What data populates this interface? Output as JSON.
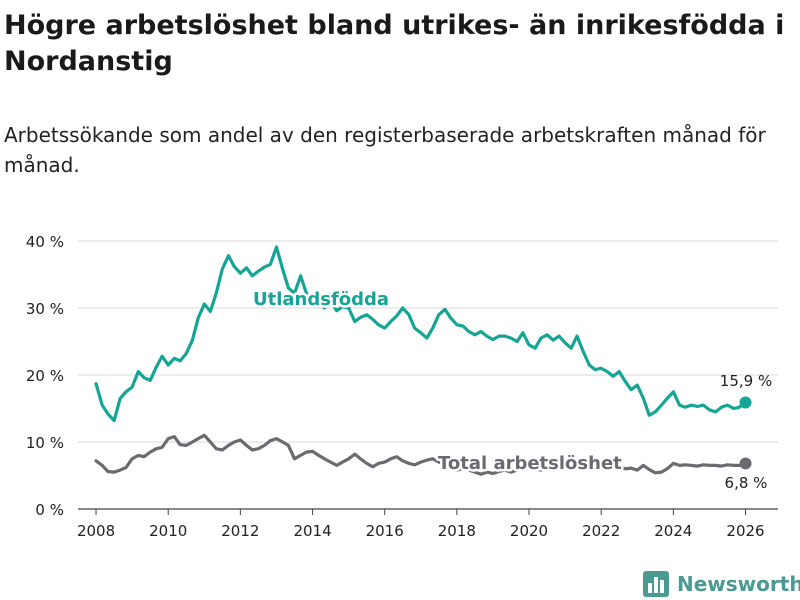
{
  "header": {
    "title": "Högre arbetslöshet bland utrikes- än inrikesfödda i Nordanstig",
    "subtitle": "Arbetssökande som andel av den registerbaserade arbetskraften månad för månad."
  },
  "brand": {
    "name": "Newsworthy"
  },
  "colors": {
    "utlandsfodda": "#14a597",
    "total": "#6b6a70",
    "grid": "#d9d9d9",
    "text": "#222222"
  },
  "chart_data": {
    "type": "line",
    "title": "Högre arbetslöshet bland utrikes- än inrikesfödda i Nordanstig",
    "subtitle": "Arbetssökande som andel av den registerbaserade arbetskraften månad för månad.",
    "xlabel": "",
    "ylabel": "",
    "xlim": [
      2007.5,
      2026.9
    ],
    "ylim": [
      0,
      40
    ],
    "y_ticks": [
      0,
      10,
      20,
      30,
      40
    ],
    "y_tick_labels": [
      "0 %",
      "10 %",
      "20 %",
      "30 %",
      "40 %"
    ],
    "x_ticks": [
      2008,
      2010,
      2012,
      2014,
      2016,
      2018,
      2020,
      2022,
      2024,
      2026
    ],
    "x_tick_labels": [
      "2008",
      "2010",
      "2012",
      "2014",
      "2016",
      "2018",
      "2020",
      "2022",
      "2024",
      "2026"
    ],
    "grid": true,
    "series": [
      {
        "name": "Utlandsfödda",
        "color": "#14a597",
        "end_label": "15,9 %",
        "x": [
          2008.0,
          2008.17,
          2008.33,
          2008.5,
          2008.67,
          2008.83,
          2009.0,
          2009.17,
          2009.33,
          2009.5,
          2009.67,
          2009.83,
          2010.0,
          2010.17,
          2010.33,
          2010.5,
          2010.67,
          2010.83,
          2011.0,
          2011.17,
          2011.33,
          2011.5,
          2011.67,
          2011.83,
          2012.0,
          2012.17,
          2012.33,
          2012.5,
          2012.67,
          2012.83,
          2013.0,
          2013.17,
          2013.33,
          2013.5,
          2013.67,
          2013.83,
          2014.0,
          2014.17,
          2014.33,
          2014.5,
          2014.67,
          2014.83,
          2015.0,
          2015.17,
          2015.33,
          2015.5,
          2015.67,
          2015.83,
          2016.0,
          2016.17,
          2016.33,
          2016.5,
          2016.67,
          2016.83,
          2017.0,
          2017.17,
          2017.33,
          2017.5,
          2017.67,
          2017.83,
          2018.0,
          2018.17,
          2018.33,
          2018.5,
          2018.67,
          2018.83,
          2019.0,
          2019.17,
          2019.33,
          2019.5,
          2019.67,
          2019.83,
          2020.0,
          2020.17,
          2020.33,
          2020.5,
          2020.67,
          2020.83,
          2021.0,
          2021.17,
          2021.33,
          2021.5,
          2021.67,
          2021.83,
          2022.0,
          2022.17,
          2022.33,
          2022.5,
          2022.67,
          2022.83,
          2023.0,
          2023.17,
          2023.33,
          2023.5,
          2023.67,
          2023.83,
          2024.0,
          2024.17,
          2024.33,
          2024.5,
          2024.67,
          2024.83,
          2025.0,
          2025.17,
          2025.33,
          2025.5,
          2025.67,
          2025.83,
          2026.0
        ],
        "values": [
          18.7,
          15.5,
          14.2,
          13.2,
          16.5,
          17.5,
          18.2,
          20.5,
          19.6,
          19.2,
          21.2,
          22.8,
          21.5,
          22.5,
          22.1,
          23.2,
          25.2,
          28.5,
          30.6,
          29.5,
          32.2,
          35.8,
          37.8,
          36.2,
          35.2,
          36.0,
          34.8,
          35.5,
          36.1,
          36.5,
          39.1,
          35.8,
          33.0,
          32.2,
          34.8,
          32.2,
          31.0,
          31.6,
          30.0,
          31.0,
          29.6,
          30.2,
          30.0,
          28.0,
          28.6,
          29.0,
          28.3,
          27.5,
          27.0,
          28.0,
          28.8,
          30.0,
          29.0,
          27.0,
          26.3,
          25.5,
          27.0,
          29.0,
          29.8,
          28.5,
          27.5,
          27.3,
          26.5,
          26.0,
          26.5,
          25.8,
          25.3,
          25.8,
          25.8,
          25.5,
          25.0,
          26.3,
          24.5,
          24.0,
          25.5,
          26.0,
          25.2,
          25.8,
          24.8,
          24.0,
          25.8,
          23.5,
          21.5,
          20.8,
          21.0,
          20.5,
          19.8,
          20.5,
          19.0,
          17.8,
          18.5,
          16.5,
          14.0,
          14.5,
          15.5,
          16.5,
          17.5,
          15.5,
          15.2,
          15.5,
          15.3,
          15.5,
          14.8,
          14.5,
          15.2,
          15.5,
          15.0,
          15.2,
          15.9
        ]
      },
      {
        "name": "Total arbetslöshet",
        "color": "#6b6a70",
        "end_label": "6,8 %",
        "x": [
          2008.0,
          2008.17,
          2008.33,
          2008.5,
          2008.67,
          2008.83,
          2009.0,
          2009.17,
          2009.33,
          2009.5,
          2009.67,
          2009.83,
          2010.0,
          2010.17,
          2010.33,
          2010.5,
          2010.67,
          2010.83,
          2011.0,
          2011.17,
          2011.33,
          2011.5,
          2011.67,
          2011.83,
          2012.0,
          2012.17,
          2012.33,
          2012.5,
          2012.67,
          2012.83,
          2013.0,
          2013.17,
          2013.33,
          2013.5,
          2013.67,
          2013.83,
          2014.0,
          2014.17,
          2014.33,
          2014.5,
          2014.67,
          2014.83,
          2015.0,
          2015.17,
          2015.33,
          2015.5,
          2015.67,
          2015.83,
          2016.0,
          2016.17,
          2016.33,
          2016.5,
          2016.67,
          2016.83,
          2017.0,
          2017.17,
          2017.33,
          2017.5,
          2017.67,
          2017.83,
          2018.0,
          2018.17,
          2018.33,
          2018.5,
          2018.67,
          2018.83,
          2019.0,
          2019.17,
          2019.33,
          2019.5,
          2019.67,
          2019.83,
          2020.0,
          2020.17,
          2020.33,
          2020.5,
          2020.67,
          2020.83,
          2021.0,
          2021.17,
          2021.33,
          2021.5,
          2021.67,
          2021.83,
          2022.0,
          2022.17,
          2022.33,
          2022.5,
          2022.67,
          2022.83,
          2023.0,
          2023.17,
          2023.33,
          2023.5,
          2023.67,
          2023.83,
          2024.0,
          2024.17,
          2024.33,
          2024.5,
          2024.67,
          2024.83,
          2025.0,
          2025.17,
          2025.33,
          2025.5,
          2025.67,
          2025.83,
          2026.0
        ],
        "values": [
          7.2,
          6.5,
          5.6,
          5.5,
          5.8,
          6.2,
          7.5,
          8.0,
          7.8,
          8.5,
          9.0,
          9.2,
          10.5,
          10.8,
          9.6,
          9.5,
          10.0,
          10.5,
          11.0,
          10.0,
          9.0,
          8.8,
          9.5,
          10.0,
          10.3,
          9.5,
          8.8,
          9.0,
          9.5,
          10.2,
          10.5,
          10.0,
          9.5,
          7.5,
          8.0,
          8.5,
          8.6,
          8.0,
          7.5,
          7.0,
          6.5,
          7.0,
          7.5,
          8.2,
          7.5,
          6.8,
          6.3,
          6.8,
          7.0,
          7.5,
          7.8,
          7.2,
          6.8,
          6.6,
          7.0,
          7.3,
          7.5,
          7.0,
          6.8,
          6.0,
          5.8,
          6.0,
          5.8,
          5.5,
          5.2,
          5.5,
          5.3,
          5.6,
          5.8,
          5.5,
          5.8,
          6.0,
          6.2,
          6.0,
          5.8,
          6.0,
          5.8,
          6.0,
          6.2,
          6.3,
          6.3,
          6.2,
          6.5,
          6.2,
          6.0,
          6.2,
          6.5,
          6.3,
          6.0,
          6.1,
          5.8,
          6.5,
          5.9,
          5.4,
          5.5,
          6.0,
          6.8,
          6.5,
          6.6,
          6.5,
          6.4,
          6.6,
          6.5,
          6.5,
          6.4,
          6.6,
          6.5,
          6.5,
          6.8
        ]
      }
    ]
  }
}
